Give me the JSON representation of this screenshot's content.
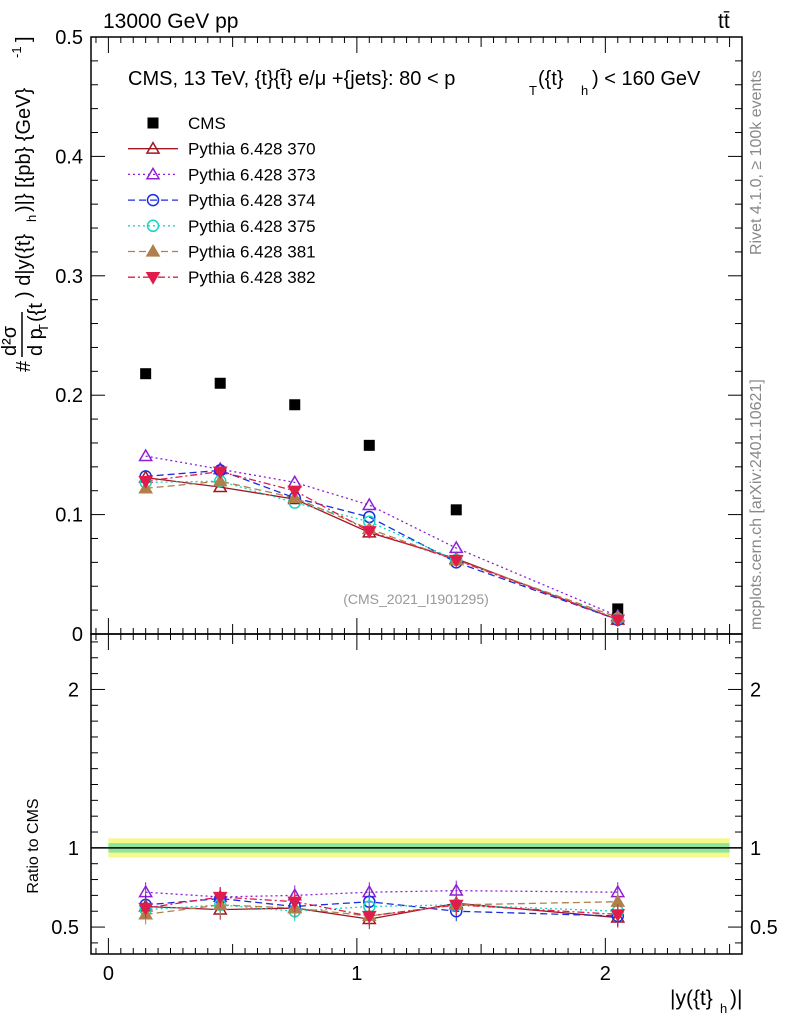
{
  "header": {
    "energy_label": "13000 GeV pp",
    "process_label": "tt̄"
  },
  "side_labels": {
    "rivet": "Rivet 4.1.0, ≥ 100k events",
    "mcplots": "mcplots.cern.ch [arXiv:2401.10621]"
  },
  "watermark": "(CMS_2021_I1901295)",
  "chart_data": [
    {
      "type": "scatter",
      "panel": "main",
      "title": "CMS, 13 TeV, {t}{t̄} e/μ +{jets}: 80 <  p_T({t}_h) < 160 GeV",
      "title_parts": {
        "main": "CMS, 13 TeV, {t}{t̄} e/μ +{jets}: 80 <  p",
        "sub1": "T",
        "mid": "({t}",
        "sub2": "h",
        "end": ") < 160 GeV"
      },
      "xlabel": "|y({t}_h)|",
      "ylabel": "d²σ / d p_T({t}_h) d|y({t}_h)| [{pb} {GeV}⁻¹]",
      "ylabel_parts": {
        "hash": "#",
        "num": "d²σ",
        "den": "d p",
        "den_sub": "T",
        "den_tail": "({t",
        "rest": ") d|y({t}",
        "rest_sub": "h",
        "unit": ")|} [{pb} {GeV}",
        "unit_sup": "-1",
        "close": "]"
      },
      "xlim": [
        -0.07,
        2.55
      ],
      "ylim": [
        0,
        0.5
      ],
      "x_ticks": [
        0,
        1,
        2
      ],
      "x_tick_labels": [
        "0",
        "1",
        "2"
      ],
      "y_ticks": [
        0.1,
        0.2,
        0.3,
        0.4,
        0.5
      ],
      "y_tick_labels": [
        "0.1",
        "0.2",
        "0.3",
        "0.4",
        "0.5"
      ],
      "y_zero_label": "0",
      "x": [
        0.15,
        0.45,
        0.75,
        1.05,
        1.4,
        2.05
      ],
      "series": [
        {
          "name": "CMS",
          "values": [
            0.218,
            0.21,
            0.192,
            0.158,
            0.104,
            0.021
          ]
        },
        {
          "name": "Pythia 6.428 370",
          "values": [
            0.131,
            0.123,
            0.113,
            0.085,
            0.063,
            0.012
          ]
        },
        {
          "name": "Pythia 6.428 373",
          "values": [
            0.149,
            0.138,
            0.127,
            0.108,
            0.072,
            0.015
          ]
        },
        {
          "name": "Pythia 6.428 374",
          "values": [
            0.132,
            0.137,
            0.114,
            0.098,
            0.06,
            0.012
          ]
        },
        {
          "name": "Pythia 6.428 375",
          "values": [
            0.127,
            0.128,
            0.11,
            0.094,
            0.062,
            0.013
          ]
        },
        {
          "name": "Pythia 6.428 381",
          "values": [
            0.122,
            0.128,
            0.114,
            0.088,
            0.062,
            0.014
          ]
        },
        {
          "name": "Pythia 6.428 382",
          "values": [
            0.128,
            0.136,
            0.12,
            0.086,
            0.062,
            0.012
          ]
        }
      ]
    },
    {
      "type": "scatter",
      "panel": "ratio",
      "ylabel": "Ratio to CMS",
      "ylim": [
        0.33,
        2.35
      ],
      "y_ticks": [
        0.5,
        1,
        2
      ],
      "y_tick_labels": [
        "0.5",
        "1",
        "2"
      ],
      "band_inner": [
        0.97,
        1.03
      ],
      "band_outer": [
        0.94,
        1.06
      ],
      "x": [
        0.15,
        0.45,
        0.75,
        1.05,
        1.4,
        2.05
      ],
      "series": [
        {
          "name": "Pythia 6.428 370",
          "values": [
            0.63,
            0.61,
            0.62,
            0.55,
            0.65,
            0.56
          ]
        },
        {
          "name": "Pythia 6.428 373",
          "values": [
            0.72,
            0.69,
            0.7,
            0.72,
            0.73,
            0.72
          ]
        },
        {
          "name": "Pythia 6.428 374",
          "values": [
            0.64,
            0.68,
            0.63,
            0.66,
            0.6,
            0.57
          ]
        },
        {
          "name": "Pythia 6.428 375",
          "values": [
            0.61,
            0.64,
            0.6,
            0.63,
            0.64,
            0.6
          ]
        },
        {
          "name": "Pythia 6.428 381",
          "values": [
            0.58,
            0.64,
            0.62,
            0.57,
            0.64,
            0.66
          ]
        },
        {
          "name": "Pythia 6.428 382",
          "values": [
            0.62,
            0.69,
            0.66,
            0.57,
            0.64,
            0.58
          ]
        }
      ]
    }
  ],
  "styles": [
    {
      "name": "CMS",
      "color": "#000000",
      "marker": "square",
      "filled": true,
      "dash": ""
    },
    {
      "name": "Pythia 6.428 370",
      "color": "#a01722",
      "marker": "triangle",
      "filled": false,
      "dash": ""
    },
    {
      "name": "Pythia 6.428 373",
      "color": "#8e1fd6",
      "marker": "triangle",
      "filled": false,
      "dash": "2,3"
    },
    {
      "name": "Pythia 6.428 374",
      "color": "#1a2de0",
      "marker": "circle",
      "filled": false,
      "dash": "7,4"
    },
    {
      "name": "Pythia 6.428 375",
      "color": "#18d6c1",
      "marker": "circle",
      "filled": false,
      "dash": "2,3"
    },
    {
      "name": "Pythia 6.428 381",
      "color": "#b0804c",
      "marker": "triangle",
      "filled": true,
      "dash": "7,4"
    },
    {
      "name": "Pythia 6.428 382",
      "color": "#e01c4a",
      "marker": "triangle-down",
      "filled": true,
      "dash": "7,3,2,3"
    }
  ]
}
